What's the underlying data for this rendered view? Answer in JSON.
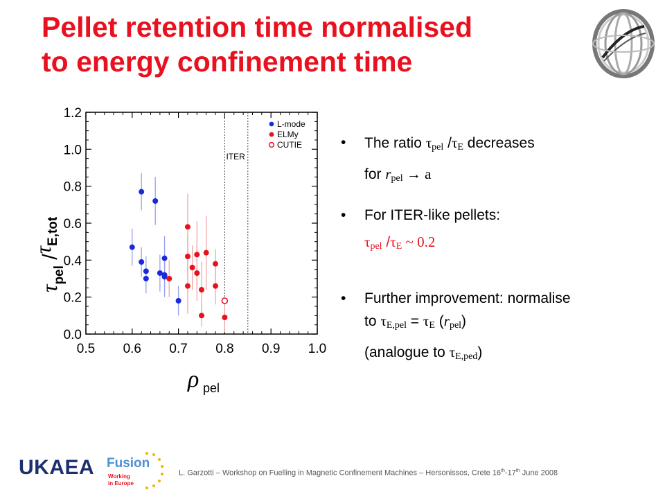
{
  "slide": {
    "title_line1": "Pellet retention time normalised",
    "title_line2": "to energy confinement time"
  },
  "bullets": {
    "b1_text_a": "The ratio ",
    "b1_tau": "τ",
    "b1_sub_pel": "pel",
    "b1_slash": " /",
    "b1_tau2": "τ",
    "b1_sub_E": "E",
    "b1_text_b": " decreases",
    "b1_line2_a": "for ",
    "b1_r": "r",
    "b1_sub_pel2": "pel",
    "b1_arrow": " → a",
    "b2_text": "For ITER-like pellets:",
    "b2_tau": "τ",
    "b2_sub_pel": "pel",
    "b2_slash": " /",
    "b2_tau2": "τ",
    "b2_sub_E": "E",
    "b2_val": " ~ 0.2",
    "b3_line1": "Further improvement:  normalise",
    "b3_to": "to ",
    "b3_tau": "τ",
    "b3_sub_Epel": "E,pel",
    "b3_eq": " = ",
    "b3_tau2": "τ",
    "b3_sub_E": "E",
    "b3_paren_open": " (",
    "b3_r": "r",
    "b3_sub_pel": "pel",
    "b3_paren_close": ")",
    "b3_line3_a": "(analogue to ",
    "b3_tau3": "τ",
    "b3_sub_Eped": "E,ped",
    "b3_line3_b": ")",
    "bullet_char": "•"
  },
  "footer": {
    "org": "UKAEA",
    "fusion_word": "Fusion",
    "fusion_tag1": "Working",
    "fusion_tag2": "in Europe",
    "citation": "L. Garzotti – Workshop on Fuelling in Magnetic Confinement Machines – Hersonissos, Crete 16",
    "th1": "th",
    "dash": "-17",
    "th2": "th",
    "citation_end": " June 2008"
  },
  "colors": {
    "title_red": "#e8111f",
    "lmode_blue": "#1a2adb",
    "elmy_red": "#e8111f",
    "err_blue": "#9aa0ee",
    "err_red": "#f3a5a8"
  },
  "chart_data": {
    "type": "scatter",
    "xlabel": "ρ",
    "xlabel_sub": "pel",
    "ylabel_tau": "τ",
    "ylabel_sub1": "pel",
    "ylabel_slash": " /",
    "ylabel_tau2": "τ",
    "ylabel_sub2": "E,tot",
    "xlim": [
      0.5,
      1.0
    ],
    "ylim": [
      0.0,
      1.2
    ],
    "x_ticks": [
      "0.5",
      "0.6",
      "0.7",
      "0.8",
      "0.9",
      "1.0"
    ],
    "y_ticks": [
      "0.0",
      "0.2",
      "0.4",
      "0.6",
      "0.8",
      "1.0",
      "1.2"
    ],
    "legend_position": "top-right",
    "vlines": [
      {
        "x": 0.8,
        "label": ""
      },
      {
        "x": 0.85,
        "label": "ITER"
      }
    ],
    "series": [
      {
        "name": "L-mode",
        "marker": "filled",
        "color": "#1a2adb",
        "points": [
          {
            "x": 0.6,
            "y": 0.47,
            "err": 0.1
          },
          {
            "x": 0.62,
            "y": 0.77,
            "err": 0.1
          },
          {
            "x": 0.62,
            "y": 0.39,
            "err": 0.08
          },
          {
            "x": 0.63,
            "y": 0.34,
            "err": 0.08
          },
          {
            "x": 0.63,
            "y": 0.3,
            "err": 0.08
          },
          {
            "x": 0.65,
            "y": 0.72,
            "err": 0.13
          },
          {
            "x": 0.66,
            "y": 0.33,
            "err": 0.1
          },
          {
            "x": 0.67,
            "y": 0.31,
            "err": 0.08
          },
          {
            "x": 0.67,
            "y": 0.32,
            "err": 0.12
          },
          {
            "x": 0.67,
            "y": 0.41,
            "err": 0.12
          },
          {
            "x": 0.7,
            "y": 0.18,
            "err": 0.08
          }
        ]
      },
      {
        "name": "ELMy",
        "marker": "filled",
        "color": "#e8111f",
        "points": [
          {
            "x": 0.68,
            "y": 0.3,
            "err": 0.1
          },
          {
            "x": 0.72,
            "y": 0.58,
            "err": 0.18
          },
          {
            "x": 0.72,
            "y": 0.42,
            "err": 0.12
          },
          {
            "x": 0.72,
            "y": 0.26,
            "err": 0.15
          },
          {
            "x": 0.73,
            "y": 0.36,
            "err": 0.12
          },
          {
            "x": 0.74,
            "y": 0.43,
            "err": 0.18
          },
          {
            "x": 0.74,
            "y": 0.33,
            "err": 0.15
          },
          {
            "x": 0.75,
            "y": 0.24,
            "err": 0.15
          },
          {
            "x": 0.75,
            "y": 0.1,
            "err": 0.06
          },
          {
            "x": 0.76,
            "y": 0.44,
            "err": 0.2
          },
          {
            "x": 0.78,
            "y": 0.26,
            "err": 0.1
          },
          {
            "x": 0.78,
            "y": 0.38,
            "err": 0.08
          },
          {
            "x": 0.8,
            "y": 0.09,
            "err": 0.08
          }
        ]
      },
      {
        "name": "CUTIE",
        "marker": "open",
        "color": "#e8111f",
        "points": [
          {
            "x": 0.8,
            "y": 0.18,
            "err": 0.0
          }
        ]
      }
    ]
  }
}
